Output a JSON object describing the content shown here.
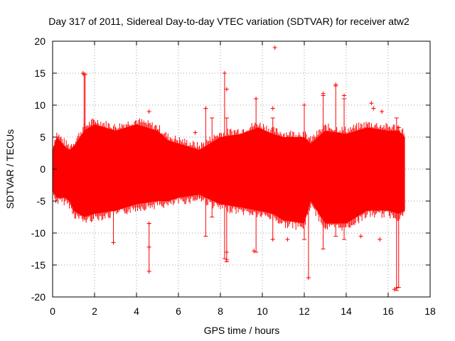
{
  "chart_data": {
    "type": "scatter",
    "title": "Day 317 of 2011, Sidereal Day-to-day VTEC variation (SDTVAR) for receiver atw2",
    "xlabel": "GPS time / hours",
    "ylabel": "SDTVAR / TECUs",
    "xlim": [
      0,
      18
    ],
    "ylim": [
      -20,
      20
    ],
    "xticks": [
      "0",
      "2",
      "4",
      "6",
      "8",
      "10",
      "12",
      "14",
      "16",
      "18"
    ],
    "yticks": [
      "-20",
      "-15",
      "-10",
      "-5",
      "0",
      "5",
      "10",
      "15",
      "20"
    ],
    "grid": true,
    "series_color": "#ff0000",
    "band_envelope": [
      {
        "x": 0.0,
        "low": -3.5,
        "high": 3.0
      },
      {
        "x": 0.2,
        "low": -4.5,
        "high": 5.0
      },
      {
        "x": 0.6,
        "low": -4.5,
        "high": 3.5
      },
      {
        "x": 0.8,
        "low": -5.0,
        "high": 3.0
      },
      {
        "x": 1.0,
        "low": -6.5,
        "high": 3.5
      },
      {
        "x": 1.5,
        "low": -7.5,
        "high": 6.0
      },
      {
        "x": 2.0,
        "low": -7.0,
        "high": 7.0
      },
      {
        "x": 3.0,
        "low": -6.5,
        "high": 6.0
      },
      {
        "x": 4.0,
        "low": -5.5,
        "high": 7.0
      },
      {
        "x": 5.0,
        "low": -5.0,
        "high": 6.0
      },
      {
        "x": 5.5,
        "low": -5.0,
        "high": 4.5
      },
      {
        "x": 6.0,
        "low": -4.5,
        "high": 4.0
      },
      {
        "x": 7.0,
        "low": -4.0,
        "high": 3.0
      },
      {
        "x": 8.0,
        "low": -5.5,
        "high": 5.0
      },
      {
        "x": 9.0,
        "low": -6.0,
        "high": 5.5
      },
      {
        "x": 9.8,
        "low": -6.5,
        "high": 6.5
      },
      {
        "x": 10.5,
        "low": -7.0,
        "high": 5.5
      },
      {
        "x": 11.0,
        "low": -8.0,
        "high": 5.0
      },
      {
        "x": 12.0,
        "low": -8.5,
        "high": 5.0
      },
      {
        "x": 12.3,
        "low": -5.0,
        "high": 4.0
      },
      {
        "x": 13.0,
        "low": -8.5,
        "high": 6.0
      },
      {
        "x": 14.0,
        "low": -8.5,
        "high": 5.5
      },
      {
        "x": 15.0,
        "low": -6.5,
        "high": 6.5
      },
      {
        "x": 16.0,
        "low": -6.5,
        "high": 6.0
      },
      {
        "x": 16.5,
        "low": -7.0,
        "high": 6.0
      },
      {
        "x": 16.8,
        "low": -6.5,
        "high": 5.0
      }
    ],
    "error_bars": [
      {
        "x": 1.5,
        "low": -2.0,
        "high": 15.0
      },
      {
        "x": 1.55,
        "low": -3.0,
        "high": 14.8
      },
      {
        "x": 2.9,
        "low": -11.5,
        "high": -3.0
      },
      {
        "x": 4.6,
        "low": -16.0,
        "high": -8.5
      },
      {
        "x": 7.3,
        "low": -10.5,
        "high": 9.5
      },
      {
        "x": 7.6,
        "low": -7.5,
        "high": 8.0
      },
      {
        "x": 8.2,
        "low": -14.0,
        "high": 15.0
      },
      {
        "x": 8.3,
        "low": -14.5,
        "high": 8.0
      },
      {
        "x": 9.7,
        "low": -13.0,
        "high": 11.0
      },
      {
        "x": 10.5,
        "low": -11.0,
        "high": 8.0
      },
      {
        "x": 12.0,
        "low": -11.0,
        "high": 10.0
      },
      {
        "x": 12.2,
        "low": -17.0,
        "high": 4.0
      },
      {
        "x": 12.9,
        "low": -12.5,
        "high": 11.5
      },
      {
        "x": 13.5,
        "low": -10.5,
        "high": 13.0
      },
      {
        "x": 13.9,
        "low": -11.0,
        "high": 11.0
      },
      {
        "x": 16.4,
        "low": -19.0,
        "high": 8.0
      },
      {
        "x": 16.5,
        "low": -18.5,
        "high": 6.5
      }
    ],
    "outlier_points": [
      {
        "x": 1.45,
        "y": 15.0
      },
      {
        "x": 1.5,
        "y": 14.8
      },
      {
        "x": 2.9,
        "y": -11.5
      },
      {
        "x": 4.6,
        "y": 9.0
      },
      {
        "x": 4.6,
        "y": -8.5
      },
      {
        "x": 4.6,
        "y": -12.2
      },
      {
        "x": 4.6,
        "y": -16.0
      },
      {
        "x": 6.8,
        "y": 5.7
      },
      {
        "x": 7.3,
        "y": 9.5
      },
      {
        "x": 8.2,
        "y": 15.0
      },
      {
        "x": 8.3,
        "y": 12.5
      },
      {
        "x": 8.3,
        "y": -13.0
      },
      {
        "x": 8.3,
        "y": -14.2
      },
      {
        "x": 9.6,
        "y": -12.8
      },
      {
        "x": 9.7,
        "y": 11.0
      },
      {
        "x": 10.5,
        "y": 9.5
      },
      {
        "x": 10.6,
        "y": 19.0
      },
      {
        "x": 10.5,
        "y": -11.0
      },
      {
        "x": 12.0,
        "y": 10.0
      },
      {
        "x": 12.2,
        "y": -17.0
      },
      {
        "x": 12.9,
        "y": 11.8
      },
      {
        "x": 13.5,
        "y": 13.2
      },
      {
        "x": 13.9,
        "y": 11.5
      },
      {
        "x": 15.2,
        "y": 10.3
      },
      {
        "x": 15.3,
        "y": 9.5
      },
      {
        "x": 15.7,
        "y": 9.0
      },
      {
        "x": 16.3,
        "y": -18.8
      },
      {
        "x": 16.4,
        "y": -18.6
      },
      {
        "x": 15.6,
        "y": -11.0
      },
      {
        "x": 14.7,
        "y": -10.5
      },
      {
        "x": 11.2,
        "y": -11.0
      }
    ]
  }
}
